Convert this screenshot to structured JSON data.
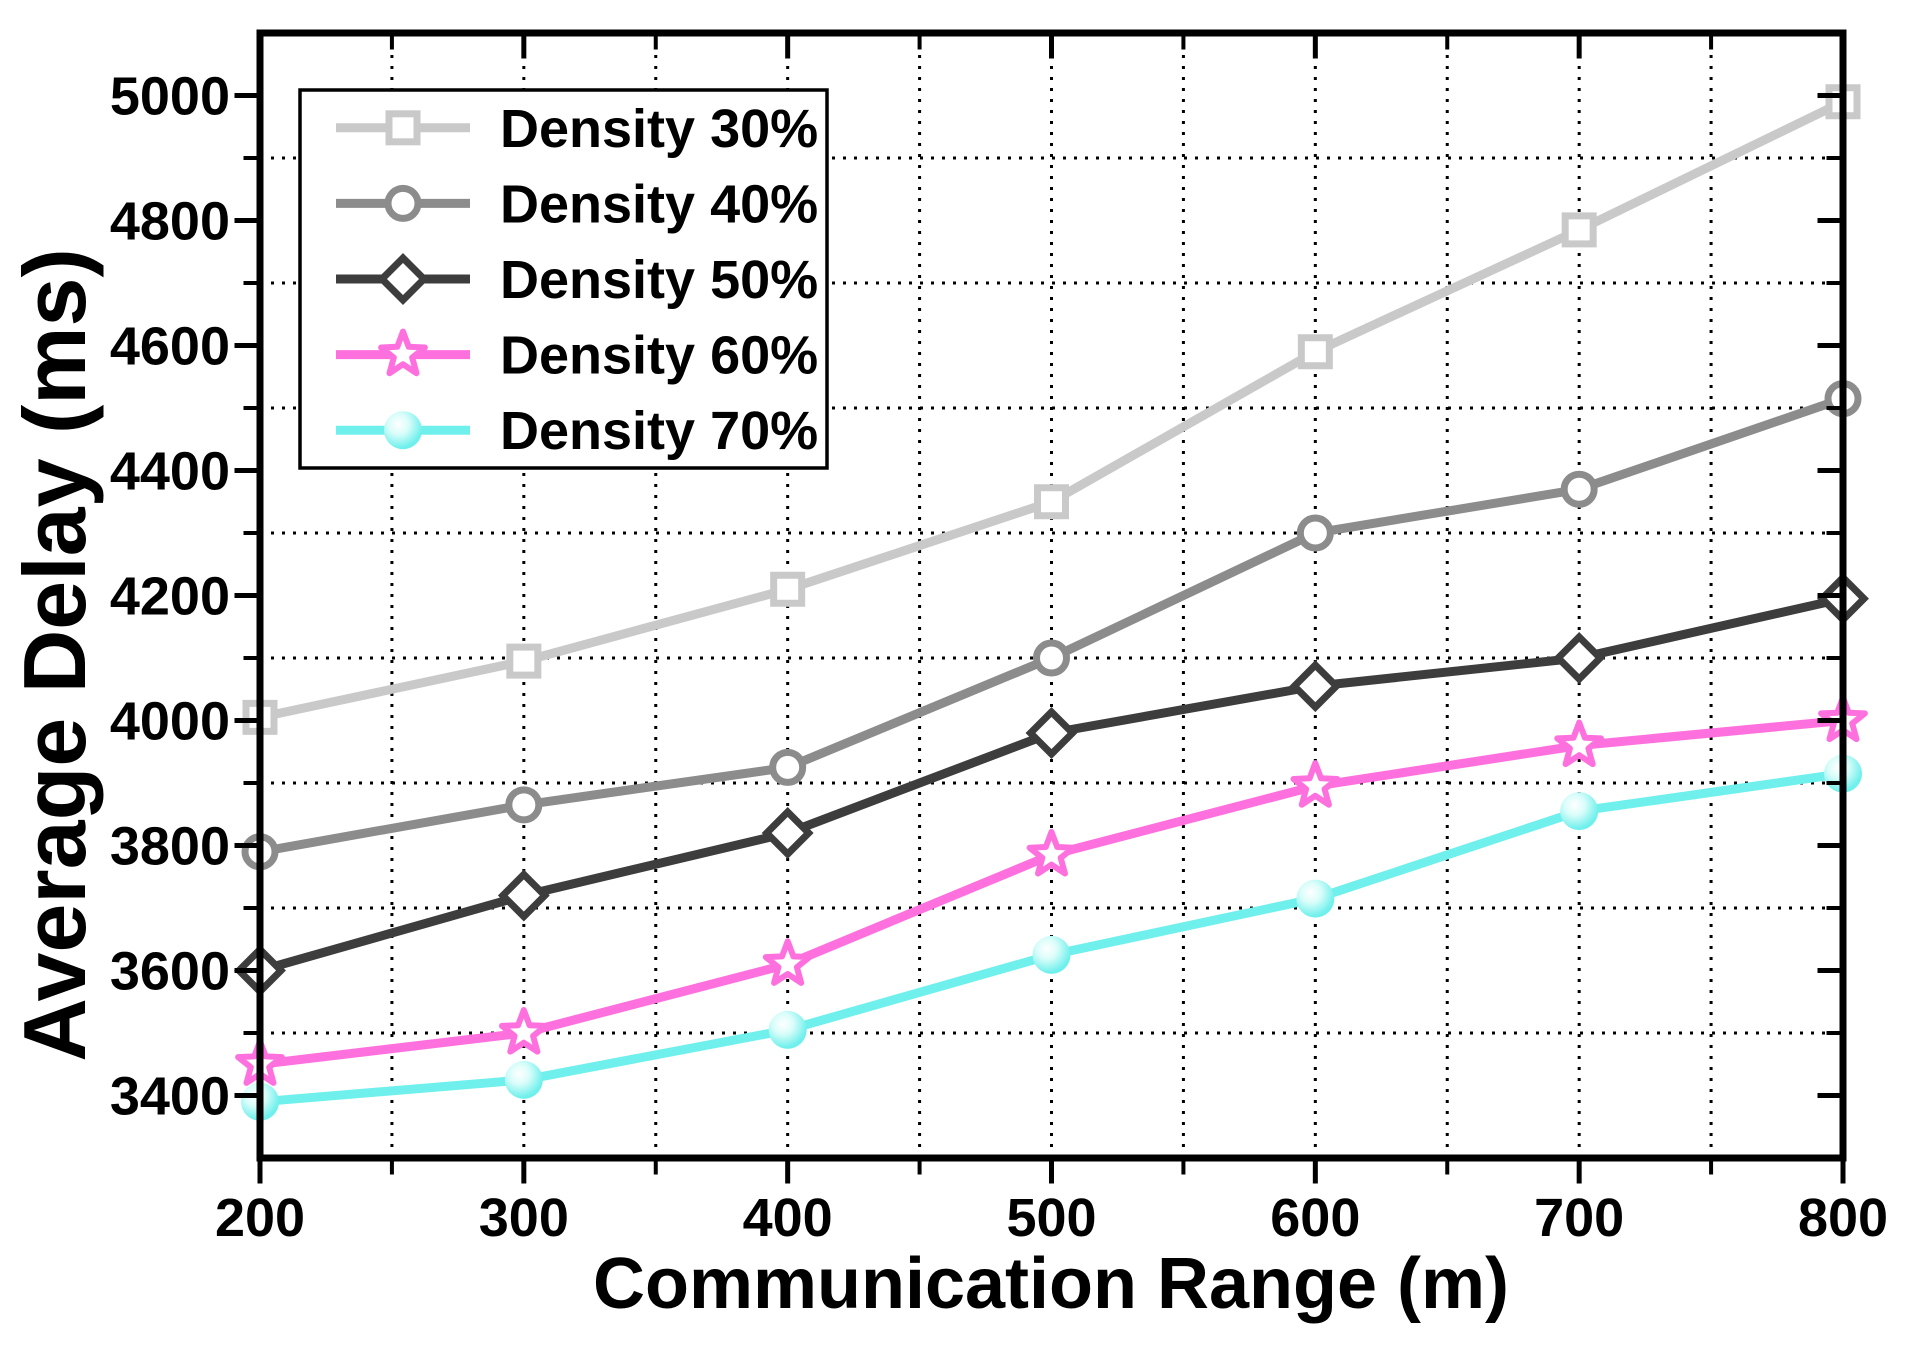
{
  "chart_data": {
    "type": "line",
    "title": "",
    "xlabel": "Communication Range (m)",
    "ylabel": "Average Delay (ms)",
    "xlim": [
      200,
      800
    ],
    "ylim": [
      3300,
      5100
    ],
    "x": [
      200,
      300,
      400,
      500,
      600,
      700,
      800
    ],
    "x_major_ticks": [
      200,
      300,
      400,
      500,
      600,
      700,
      800
    ],
    "x_minor_ticks": [
      250,
      350,
      450,
      550,
      650,
      750
    ],
    "y_major_ticks": [
      5000,
      4800,
      4600,
      4400,
      4200,
      4000,
      3800,
      3600,
      3400
    ],
    "y_minor_ticks": [
      4900,
      4700,
      4500,
      4300,
      4100,
      3900,
      3700,
      3500
    ],
    "grid_vertical": [
      250,
      300,
      350,
      400,
      450,
      500,
      550,
      600,
      650,
      700,
      750
    ],
    "grid_horizontal": [
      4900,
      4700,
      4500,
      4300,
      4100,
      3900,
      3700,
      3500
    ],
    "grid_style": "dotted",
    "grid_color": "#000000",
    "axis_color": "#000000",
    "background_color": "#ffffff",
    "legend_position": "top-left",
    "series": [
      {
        "name": "Density 30%",
        "marker": "square",
        "color": "#C9C9C9",
        "values": [
          4005,
          4095,
          4210,
          4350,
          4590,
          4785,
          4990
        ]
      },
      {
        "name": "Density 40%",
        "marker": "circle",
        "color": "#8C8C8C",
        "values": [
          3790,
          3865,
          3925,
          4100,
          4300,
          4370,
          4515
        ]
      },
      {
        "name": "Density 50%",
        "marker": "diamond",
        "color": "#3D3D3D",
        "values": [
          3600,
          3720,
          3820,
          3980,
          4055,
          4100,
          4195
        ]
      },
      {
        "name": "Density 60%",
        "marker": "star",
        "color": "#FF70DF",
        "values": [
          3450,
          3500,
          3610,
          3785,
          3895,
          3960,
          4000
        ]
      },
      {
        "name": "Density 70%",
        "marker": "sphere",
        "color": "#70F0EC",
        "values": [
          3390,
          3425,
          3505,
          3625,
          3715,
          3855,
          3915
        ]
      }
    ]
  }
}
